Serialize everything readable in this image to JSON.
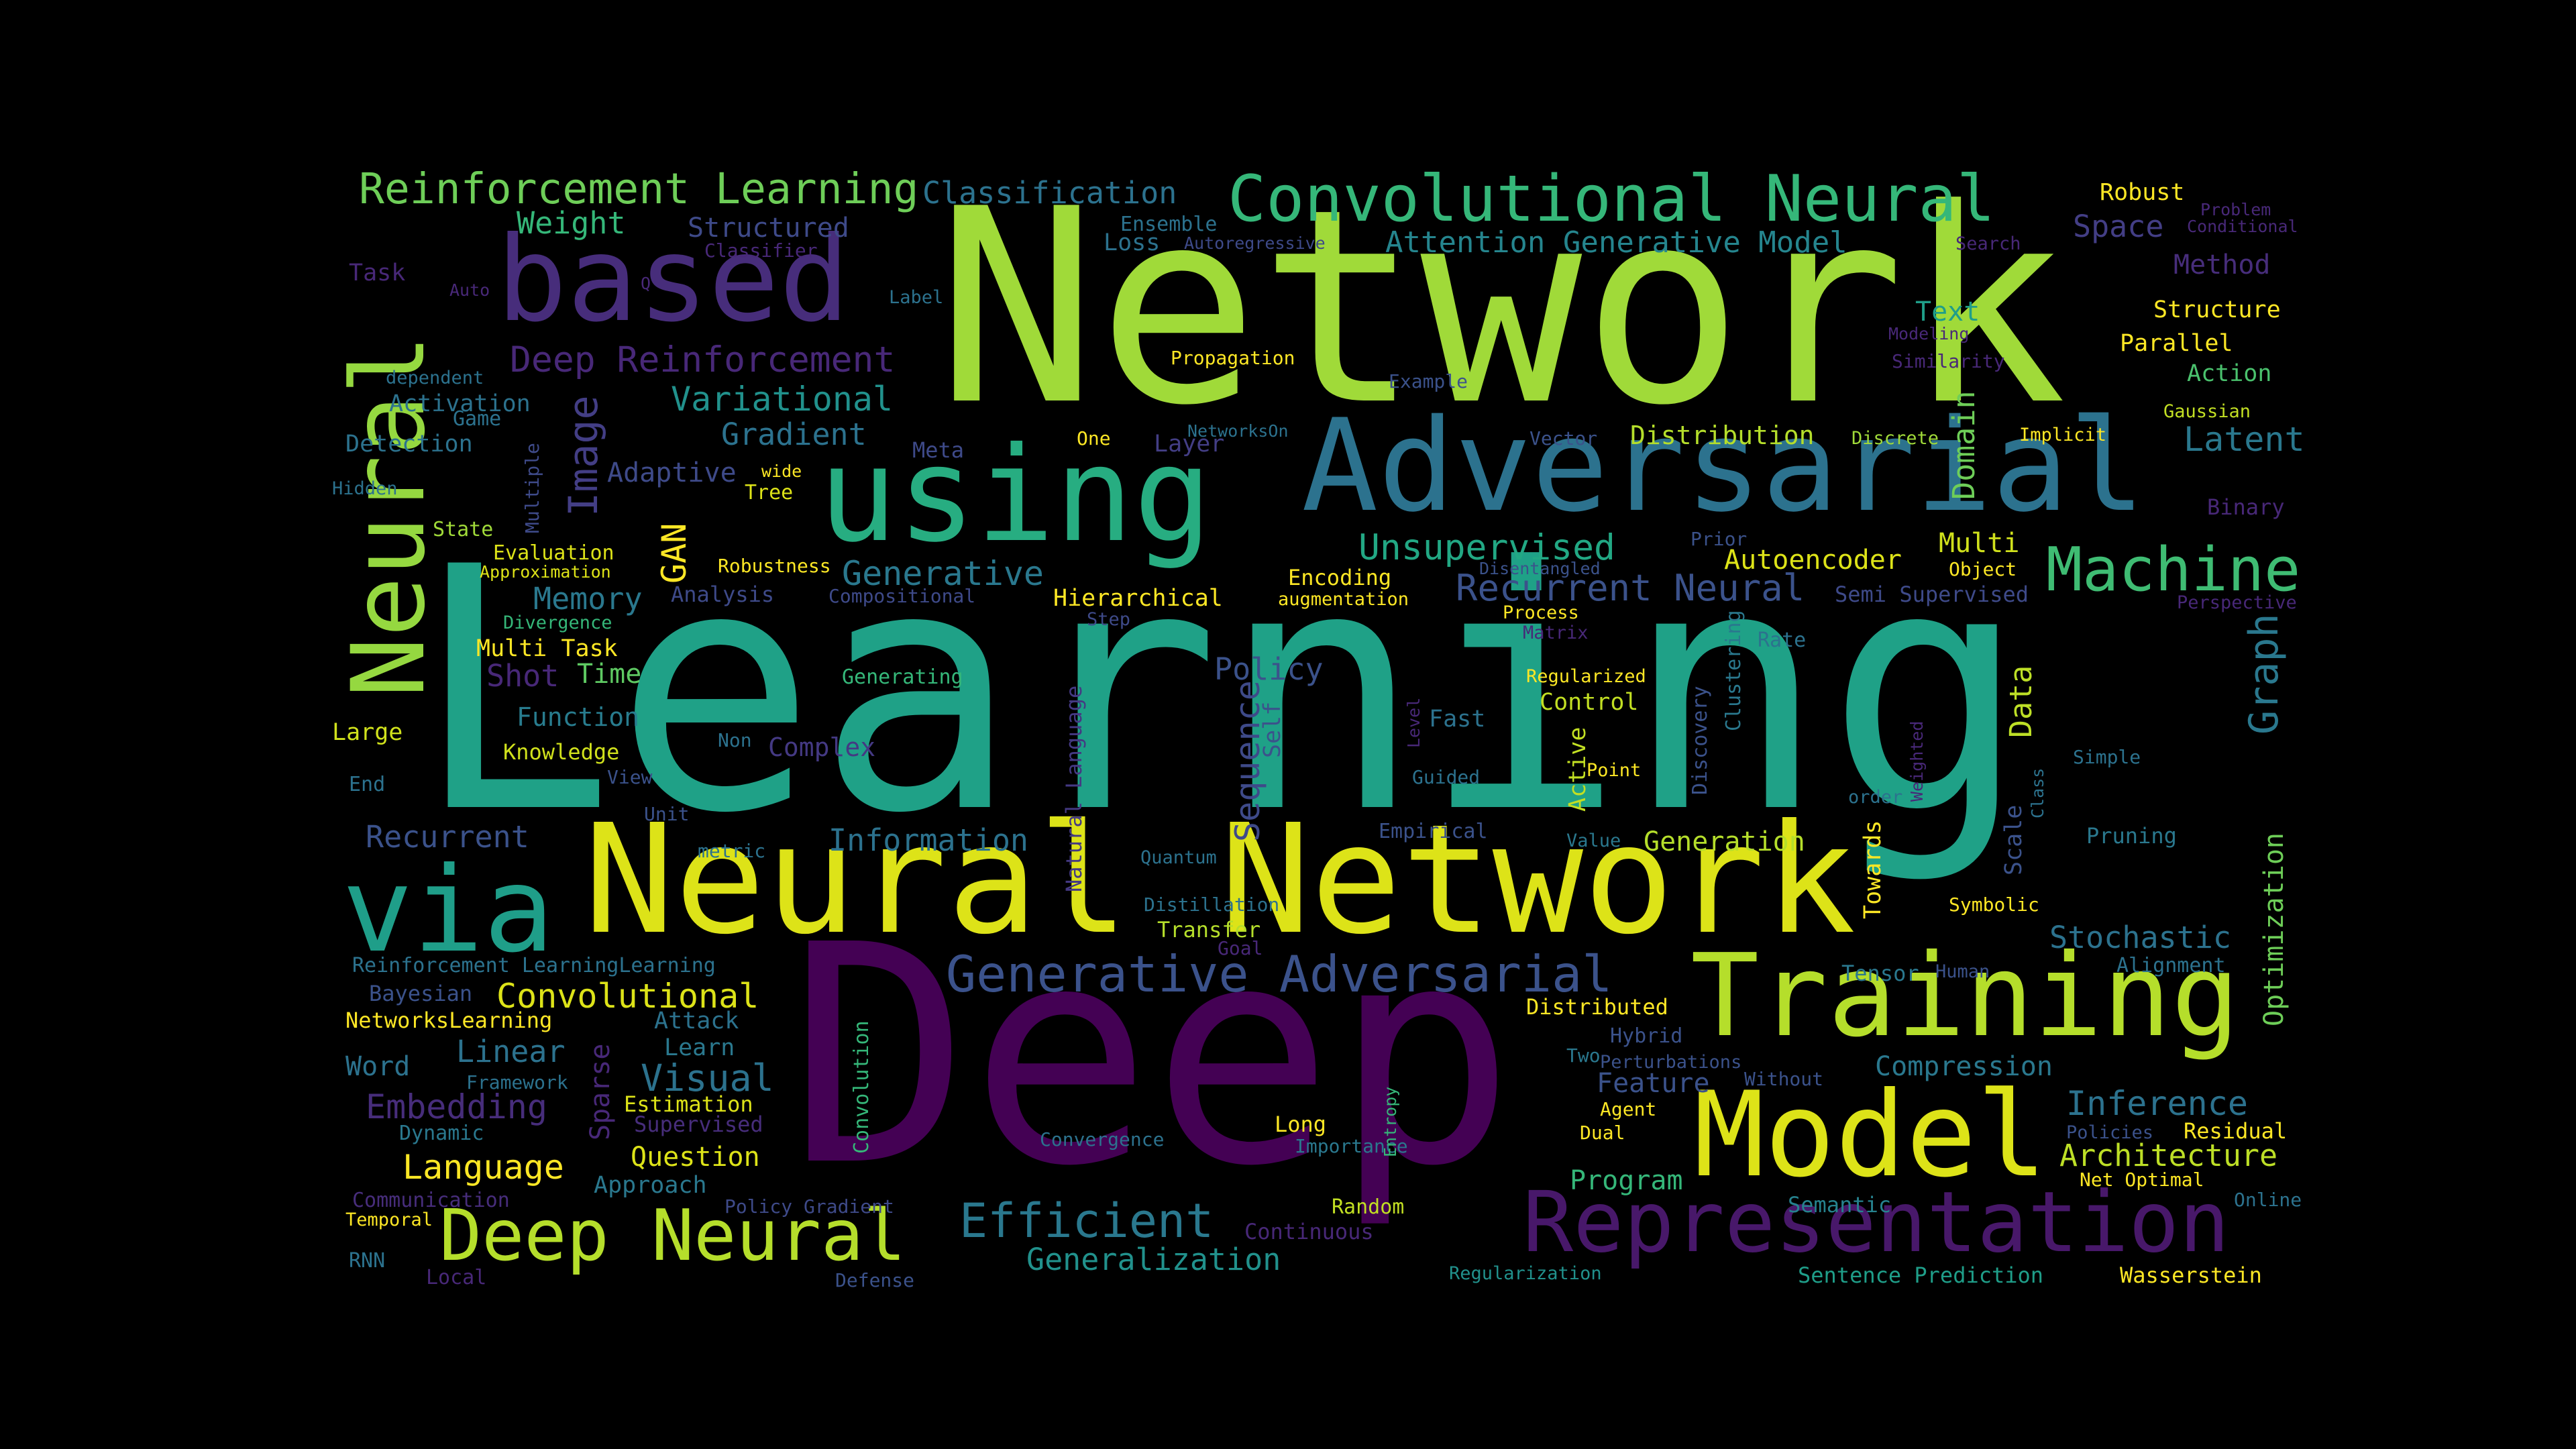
{
  "words": [
    {
      "text": "Network",
      "color": "#a0da39"
    },
    {
      "text": "Learning",
      "color": "#1fa187"
    },
    {
      "text": "Deep",
      "color": "#440154"
    },
    {
      "text": "Neural Network",
      "color": "#dde318"
    },
    {
      "text": "Adversarial",
      "color": "#2c728e"
    },
    {
      "text": "using",
      "color": "#27ad81"
    },
    {
      "text": "based",
      "color": "#472d7b"
    },
    {
      "text": "Neural",
      "color": "#95d840"
    },
    {
      "text": "via",
      "color": "#1f9e89"
    },
    {
      "text": "Training",
      "color": "#b5de2b"
    },
    {
      "text": "Model",
      "color": "#dde318"
    },
    {
      "text": "Representation",
      "color": "#48186a"
    },
    {
      "text": "Convolutional Neural",
      "color": "#35b779"
    },
    {
      "text": "Reinforcement Learning",
      "color": "#6ece58"
    },
    {
      "text": "Machine",
      "color": "#3fbc73"
    },
    {
      "text": "Generative Adversarial",
      "color": "#3b528b"
    },
    {
      "text": "Deep Neural",
      "color": "#b5de2b"
    },
    {
      "text": "Efficient",
      "color": "#2a788e"
    },
    {
      "text": "Deep Reinforcement",
      "color": "#482878"
    },
    {
      "text": "Attention Generative Model",
      "color": "#25858e"
    },
    {
      "text": "Recurrent Neural",
      "color": "#3b528b"
    },
    {
      "text": "Unsupervised",
      "color": "#22a884"
    },
    {
      "text": "Classification",
      "color": "#2c728e"
    },
    {
      "text": "Variational",
      "color": "#21918c"
    },
    {
      "text": "Gradient",
      "color": "#2c728e"
    },
    {
      "text": "Generative",
      "color": "#2a788e"
    },
    {
      "text": "Image",
      "color": "#433e85"
    },
    {
      "text": "Graph",
      "color": "#2a788e"
    },
    {
      "text": "Inference",
      "color": "#2c728e"
    },
    {
      "text": "Convolutional",
      "color": "#dde318"
    },
    {
      "text": "Stochastic",
      "color": "#2c728e"
    },
    {
      "text": "Generalization",
      "color": "#21918c"
    },
    {
      "text": "Architecture",
      "color": "#bddf26"
    },
    {
      "text": "Latent",
      "color": "#2a788e"
    },
    {
      "text": "Language",
      "color": "#fde725"
    },
    {
      "text": "Optimization",
      "color": "#6ece58"
    },
    {
      "text": "Sequence",
      "color": "#3e4a89"
    },
    {
      "text": "Domain",
      "color": "#6ece58"
    },
    {
      "text": "Visual",
      "color": "#2c728e"
    },
    {
      "text": "Embedding",
      "color": "#472d7b"
    },
    {
      "text": "Policy",
      "color": "#3b528b"
    },
    {
      "text": "Memory",
      "color": "#2a788e"
    },
    {
      "text": "Information",
      "color": "#2c728e"
    },
    {
      "text": "Recurrent",
      "color": "#3b528b"
    },
    {
      "text": "Data",
      "color": "#bddf26"
    },
    {
      "text": "Weight",
      "color": "#35b779"
    },
    {
      "text": "Structured",
      "color": "#3e4a89"
    },
    {
      "text": "Autoencoder",
      "color": "#dde318"
    },
    {
      "text": "Generation",
      "color": "#b5de2b"
    },
    {
      "text": "Feature",
      "color": "#3b528b"
    },
    {
      "text": "Program",
      "color": "#35b779"
    },
    {
      "text": "Compression",
      "color": "#2a788e"
    },
    {
      "text": "Text",
      "color": "#1f9e89"
    },
    {
      "text": "Method",
      "color": "#472d7b"
    },
    {
      "text": "Space",
      "color": "#433e85"
    },
    {
      "text": "Distribution",
      "color": "#b5de2b"
    },
    {
      "text": "Multi",
      "color": "#d0e11c"
    },
    {
      "text": "Linear",
      "color": "#2c728e"
    },
    {
      "text": "Word",
      "color": "#2c728e"
    },
    {
      "text": "Question",
      "color": "#dde318"
    },
    {
      "text": "Shot",
      "color": "#482878"
    },
    {
      "text": "Time",
      "color": "#5ec962"
    },
    {
      "text": "Multi Task",
      "color": "#fde725"
    },
    {
      "text": "Complex",
      "color": "#443983"
    },
    {
      "text": "Function",
      "color": "#287c8e"
    },
    {
      "text": "Adaptive",
      "color": "#3e4a89"
    },
    {
      "text": "Activation",
      "color": "#2c728e"
    },
    {
      "text": "Detection",
      "color": "#2c728e"
    },
    {
      "text": "Large",
      "color": "#d0e11c"
    },
    {
      "text": "Knowledge",
      "color": "#d0e11c"
    },
    {
      "text": "Structure",
      "color": "#fde725"
    },
    {
      "text": "Parallel",
      "color": "#fde725"
    },
    {
      "text": "Action",
      "color": "#4ac16d"
    },
    {
      "text": "Robust",
      "color": "#fde725"
    },
    {
      "text": "Loss",
      "color": "#2c728e"
    },
    {
      "text": "Control",
      "color": "#c2df23"
    },
    {
      "text": "Hierarchical",
      "color": "#fde725"
    },
    {
      "text": "Encoding",
      "color": "#fde725"
    },
    {
      "text": "Approach",
      "color": "#2a788e"
    },
    {
      "text": "Residual",
      "color": "#fde725"
    },
    {
      "text": "Wasserstein",
      "color": "#fde725"
    },
    {
      "text": "Sentence Prediction",
      "color": "#1f9e89"
    },
    {
      "text": "Semantic",
      "color": "#26828e"
    },
    {
      "text": "Estimation",
      "color": "#dde318"
    },
    {
      "text": "Sparse",
      "color": "#482878"
    },
    {
      "text": "Pruning",
      "color": "#2a788e"
    },
    {
      "text": "Tensor",
      "color": "#2a788e"
    },
    {
      "text": "Fast",
      "color": "#2c728e"
    },
    {
      "text": "GAN",
      "color": "#fde725"
    },
    {
      "text": "Self",
      "color": "#3b528b"
    },
    {
      "text": "Scale",
      "color": "#3b528b"
    },
    {
      "text": "Towards",
      "color": "#fde725"
    },
    {
      "text": "Active",
      "color": "#c2df23"
    },
    {
      "text": "Clustering",
      "color": "#2a788e"
    },
    {
      "text": "Natural Language",
      "color": "#443983"
    },
    {
      "text": "Convolution",
      "color": "#35b779"
    },
    {
      "text": "Discovery",
      "color": "#3b528b"
    },
    {
      "text": "Multiple",
      "color": "#3e4a89"
    },
    {
      "text": "Transfer",
      "color": "#b5de2b"
    },
    {
      "text": "Distributed",
      "color": "#fde725"
    },
    {
      "text": "Random",
      "color": "#c2df23"
    },
    {
      "text": "Learn",
      "color": "#2a788e"
    },
    {
      "text": "Attack",
      "color": "#2c728e"
    },
    {
      "text": "Bayesian",
      "color": "#3b528b"
    },
    {
      "text": "NetworksLearning",
      "color": "#fde725"
    },
    {
      "text": "Reinforcement LearningLearning",
      "color": "#2c728e"
    },
    {
      "text": "Generating",
      "color": "#35b779"
    },
    {
      "text": "Game",
      "color": "#2c728e"
    },
    {
      "text": "State",
      "color": "#a0da39"
    },
    {
      "text": "Evaluation",
      "color": "#dde318"
    },
    {
      "text": "Approximation",
      "color": "#dde318"
    },
    {
      "text": "Divergence",
      "color": "#35b779"
    },
    {
      "text": "Robustness",
      "color": "#fde725"
    },
    {
      "text": "Analysis",
      "color": "#3e4a89"
    },
    {
      "text": "Compositional",
      "color": "#3e4a89"
    },
    {
      "text": "Step",
      "color": "#3e4a89"
    },
    {
      "text": "augmentation",
      "color": "#fde725"
    },
    {
      "text": "Process",
      "color": "#fde725"
    },
    {
      "text": "Matrix",
      "color": "#482878"
    },
    {
      "text": "Prior",
      "color": "#3b528b"
    },
    {
      "text": "Object",
      "color": "#fde725"
    },
    {
      "text": "Semi Supervised",
      "color": "#3e4a89"
    },
    {
      "text": "Perspective",
      "color": "#482878"
    },
    {
      "text": "Rate",
      "color": "#2c728e"
    },
    {
      "text": "Regularized",
      "color": "#fde725"
    },
    {
      "text": "Level",
      "color": "#482878"
    },
    {
      "text": "Guided",
      "color": "#2c728e"
    },
    {
      "text": "Point",
      "color": "#fde725"
    },
    {
      "text": "order",
      "color": "#2c728e"
    },
    {
      "text": "Weighted",
      "color": "#482878"
    },
    {
      "text": "Class",
      "color": "#2c728e"
    },
    {
      "text": "Simple",
      "color": "#2c728e"
    },
    {
      "text": "Empirical",
      "color": "#3b528b"
    },
    {
      "text": "Value",
      "color": "#2a788e"
    },
    {
      "text": "Symbolic",
      "color": "#fde725"
    },
    {
      "text": "Alignment",
      "color": "#2c728e"
    },
    {
      "text": "Human",
      "color": "#3b528b"
    },
    {
      "text": "Hybrid",
      "color": "#3b528b"
    },
    {
      "text": "Two",
      "color": "#2a788e"
    },
    {
      "text": "Perturbations",
      "color": "#3b528b"
    },
    {
      "text": "Without",
      "color": "#3b528b"
    },
    {
      "text": "Agent",
      "color": "#fde725"
    },
    {
      "text": "Dual",
      "color": "#fde725"
    },
    {
      "text": "Policies",
      "color": "#3b528b"
    },
    {
      "text": "Net Optimal",
      "color": "#fde725"
    },
    {
      "text": "Online",
      "color": "#2c728e"
    },
    {
      "text": "Regularization",
      "color": "#21918c"
    },
    {
      "text": "Long",
      "color": "#fde725"
    },
    {
      "text": "Importance",
      "color": "#2a788e"
    },
    {
      "text": "Entropy",
      "color": "#35b779"
    },
    {
      "text": "Convergence",
      "color": "#2c728e"
    },
    {
      "text": "Continuous",
      "color": "#482878"
    },
    {
      "text": "Defense",
      "color": "#3b528b"
    },
    {
      "text": "Policy Gradient",
      "color": "#3e4a89"
    },
    {
      "text": "Communication",
      "color": "#472d7b"
    },
    {
      "text": "Temporal",
      "color": "#fde725"
    },
    {
      "text": "RNN",
      "color": "#2c728e"
    },
    {
      "text": "Local",
      "color": "#482878"
    },
    {
      "text": "Dynamic",
      "color": "#2a788e"
    },
    {
      "text": "Framework",
      "color": "#2c728e"
    },
    {
      "text": "Supervised",
      "color": "#472d7b"
    },
    {
      "text": "Goal",
      "color": "#482878"
    },
    {
      "text": "Distillation",
      "color": "#2c728e"
    },
    {
      "text": "Quantum",
      "color": "#2c728e"
    },
    {
      "text": "metric",
      "color": "#2c728e"
    },
    {
      "text": "Unit",
      "color": "#3b528b"
    },
    {
      "text": "View",
      "color": "#3b528b"
    },
    {
      "text": "End",
      "color": "#2c728e"
    },
    {
      "text": "Non",
      "color": "#2c728e"
    },
    {
      "text": "Hidden",
      "color": "#2c728e"
    },
    {
      "text": "Tree",
      "color": "#dde318"
    },
    {
      "text": "wide",
      "color": "#fde725"
    },
    {
      "text": "Meta",
      "color": "#3e4a89"
    },
    {
      "text": "One",
      "color": "#fde725"
    },
    {
      "text": "Layer",
      "color": "#433e85"
    },
    {
      "text": "NetworksOn",
      "color": "#2c728e"
    },
    {
      "text": "Example",
      "color": "#3b528b"
    },
    {
      "text": "Vector",
      "color": "#3b528b"
    },
    {
      "text": "Propagation",
      "color": "#fde725"
    },
    {
      "text": "Disentangled",
      "color": "#3b528b"
    },
    {
      "text": "Discrete",
      "color": "#a0da39"
    },
    {
      "text": "Implicit",
      "color": "#fde725"
    },
    {
      "text": "Gaussian",
      "color": "#c2df23"
    },
    {
      "text": "Binary",
      "color": "#482878"
    },
    {
      "text": "Similarity",
      "color": "#482878"
    },
    {
      "text": "Modeling",
      "color": "#482878"
    },
    {
      "text": "Search",
      "color": "#482878"
    },
    {
      "text": "Problem",
      "color": "#482878"
    },
    {
      "text": "Conditional",
      "color": "#482878"
    },
    {
      "text": "Ensemble",
      "color": "#2c728e"
    },
    {
      "text": "Autoregressive",
      "color": "#3e4a89"
    },
    {
      "text": "Classifier",
      "color": "#482878"
    },
    {
      "text": "Label",
      "color": "#2c728e"
    },
    {
      "text": "Task",
      "color": "#482878"
    },
    {
      "text": "Auto",
      "color": "#482878"
    },
    {
      "text": "Q",
      "color": "#482878"
    },
    {
      "text": "dependent",
      "color": "#2c728e"
    }
  ]
}
